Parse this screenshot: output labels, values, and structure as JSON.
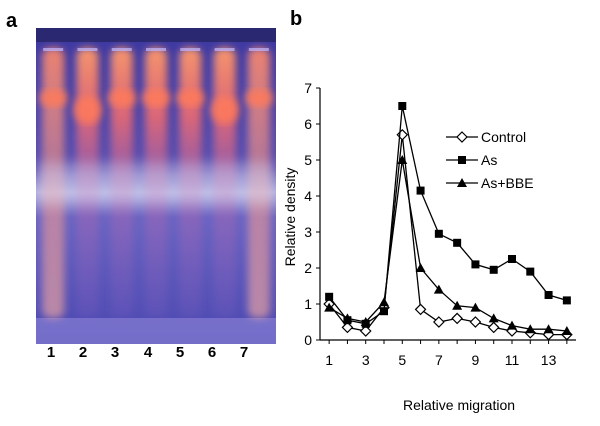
{
  "panels": {
    "a": "a",
    "b": "b"
  },
  "gel": {
    "lanes": [
      "1",
      "2",
      "3",
      "4",
      "5",
      "6",
      "7"
    ],
    "background_color": "#5a56b8",
    "band_color": "#ff7a5a"
  },
  "chart_data": {
    "type": "line",
    "xlabel": "Relative migration",
    "ylabel": "Relative density",
    "xlim": [
      0.5,
      14.5
    ],
    "ylim": [
      0,
      7
    ],
    "xticks": [
      1,
      3,
      5,
      7,
      9,
      11,
      13
    ],
    "yticks": [
      0,
      1,
      2,
      3,
      4,
      5,
      6,
      7
    ],
    "grid": false,
    "legend_position": "top-right",
    "x": [
      1,
      2,
      3,
      4,
      5,
      6,
      7,
      8,
      9,
      10,
      11,
      12,
      13,
      14
    ],
    "series": [
      {
        "name": "Control",
        "marker": "diamond-open",
        "values": [
          1.0,
          0.35,
          0.25,
          0.9,
          5.7,
          0.85,
          0.5,
          0.6,
          0.5,
          0.35,
          0.25,
          0.2,
          0.15,
          0.15
        ]
      },
      {
        "name": "As",
        "marker": "square-filled",
        "values": [
          1.2,
          0.55,
          0.45,
          0.8,
          6.5,
          4.15,
          2.95,
          2.7,
          2.1,
          1.95,
          2.25,
          1.9,
          1.25,
          1.1
        ]
      },
      {
        "name": "As+BBE",
        "marker": "triangle-filled",
        "values": [
          0.9,
          0.6,
          0.5,
          1.05,
          5.0,
          2.0,
          1.4,
          0.95,
          0.9,
          0.6,
          0.4,
          0.3,
          0.3,
          0.25
        ]
      }
    ]
  }
}
